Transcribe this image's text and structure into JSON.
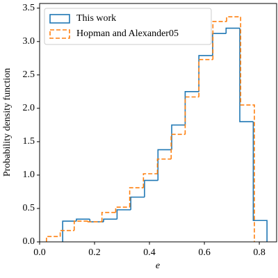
{
  "chart_data": {
    "type": "histogram",
    "xlabel": "e",
    "ylabel": "Probability density function",
    "xlim": [
      0,
      0.863
    ],
    "ylim": [
      0,
      3.57
    ],
    "xticks": [
      {
        "value": 0,
        "label": "0.0"
      },
      {
        "value": 0.2,
        "label": "0.2"
      },
      {
        "value": 0.4,
        "label": "0.4"
      },
      {
        "value": 0.6,
        "label": "0.6"
      },
      {
        "value": 0.8,
        "label": "0.8"
      }
    ],
    "yticks": [
      {
        "value": 0,
        "label": "0.0"
      },
      {
        "value": 0.5,
        "label": "0.5"
      },
      {
        "value": 1,
        "label": "1.0"
      },
      {
        "value": 1.5,
        "label": "1.5"
      },
      {
        "value": 2,
        "label": "2.0"
      },
      {
        "value": 2.5,
        "label": "2.5"
      },
      {
        "value": 3,
        "label": "3.0"
      },
      {
        "value": 3.5,
        "label": "3.5"
      }
    ],
    "legend": "upper left",
    "series": [
      {
        "name": "This work",
        "color": "#1f77b4",
        "dash": false,
        "bins": [
          0.084,
          0.134,
          0.183,
          0.233,
          0.282,
          0.332,
          0.382,
          0.431,
          0.481,
          0.53,
          0.58,
          0.63,
          0.679,
          0.729,
          0.778,
          0.828
        ],
        "values": [
          0.31,
          0.34,
          0.3,
          0.34,
          0.48,
          0.67,
          0.92,
          1.38,
          1.75,
          2.25,
          2.79,
          3.12,
          3.2,
          1.8,
          0.32
        ]
      },
      {
        "name": "Hopman and Alexander05",
        "color": "#ff7f0e",
        "dash": true,
        "bins": [
          0.025,
          0.075,
          0.126,
          0.176,
          0.227,
          0.277,
          0.328,
          0.378,
          0.429,
          0.479,
          0.53,
          0.58,
          0.631,
          0.681,
          0.732,
          0.782
        ],
        "values": [
          0.08,
          0.17,
          0.31,
          0.3,
          0.44,
          0.52,
          0.81,
          1.02,
          1.24,
          1.61,
          2.17,
          2.73,
          3.3,
          3.37,
          2.05
        ]
      }
    ]
  }
}
